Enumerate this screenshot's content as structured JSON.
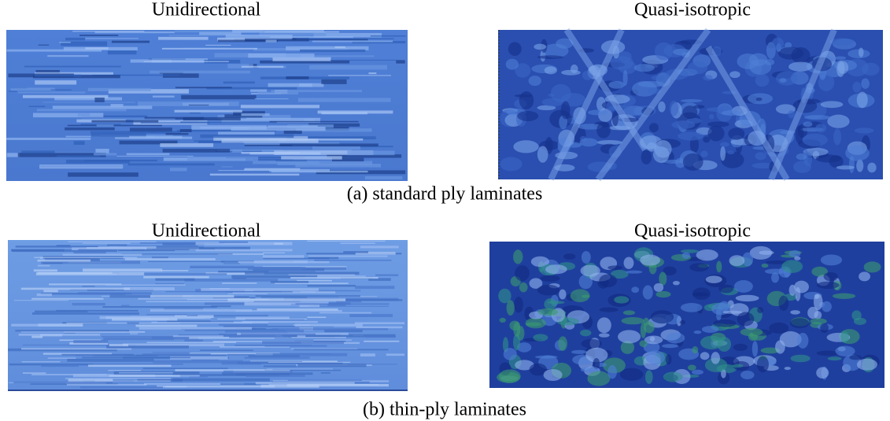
{
  "panels": [
    {
      "left_label": "Unidirectional",
      "right_label": "Quasi-isotropic",
      "caption": "(a) standard ply laminates"
    },
    {
      "left_label": "Unidirectional",
      "right_label": "Quasi-isotropic",
      "caption": "(b) thin-ply laminates"
    }
  ]
}
